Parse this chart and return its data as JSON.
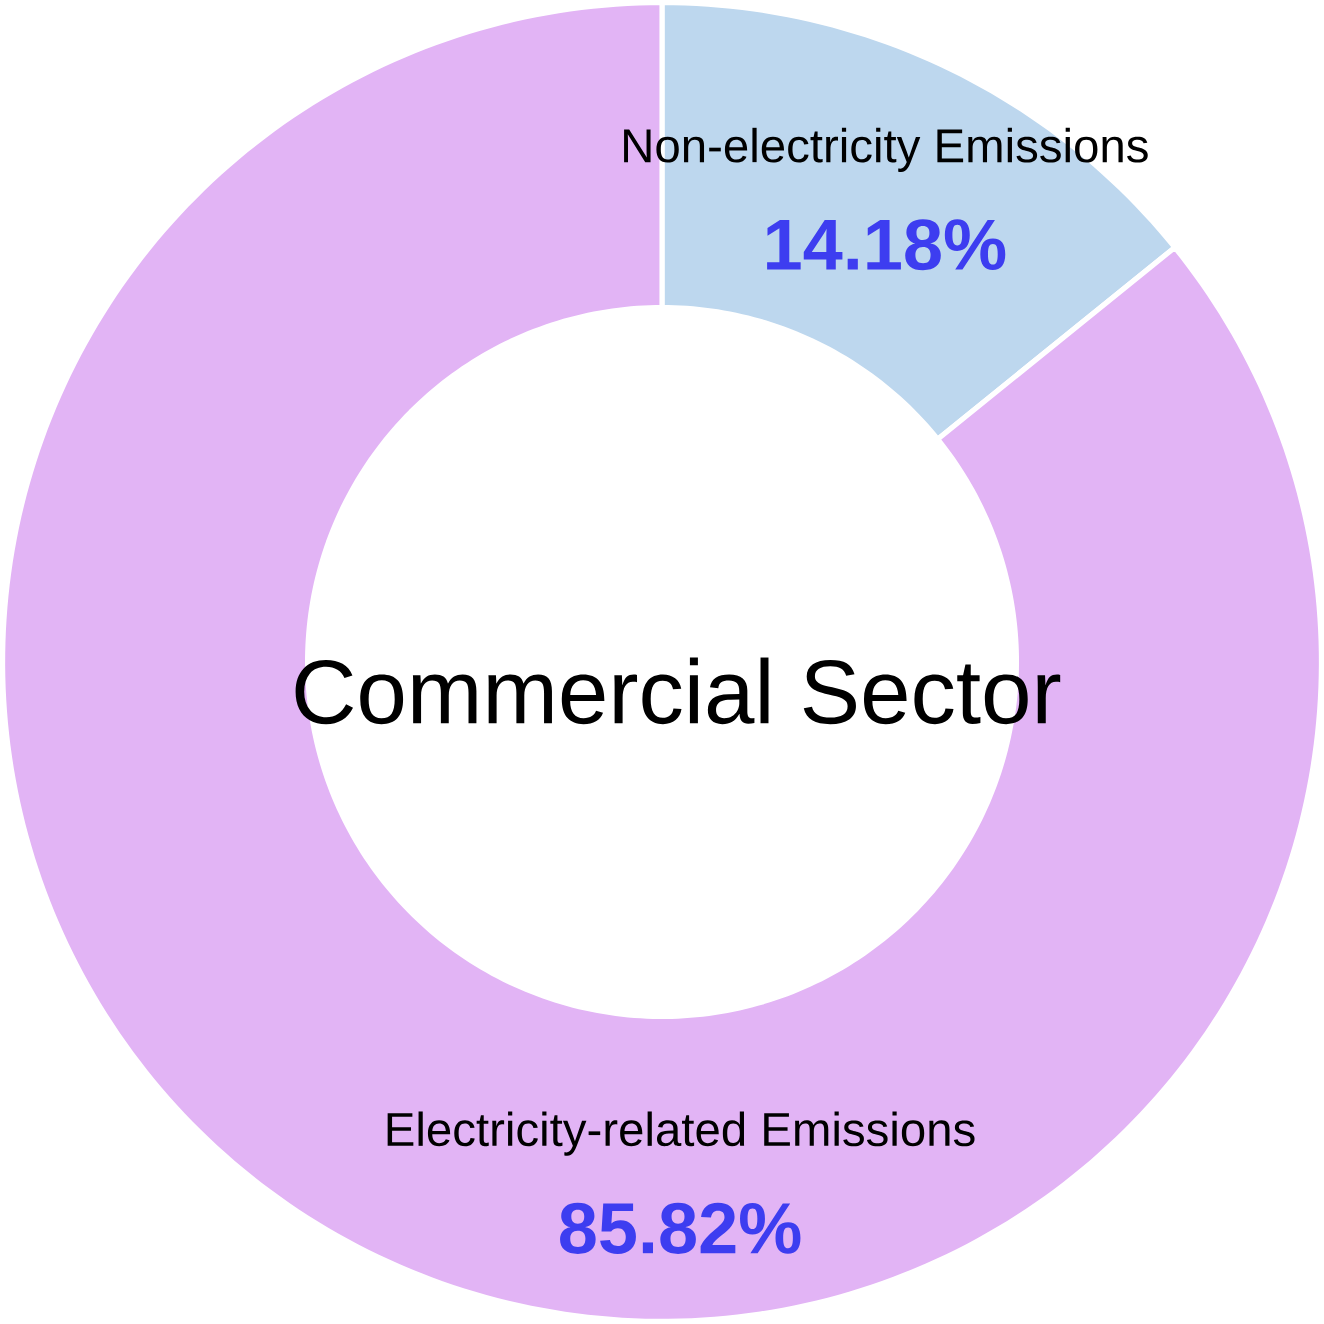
{
  "chart_data": {
    "type": "donut",
    "title": "Commercial Sector",
    "categories": [
      "Non-electricity Emissions",
      "Electricity-related Emissions"
    ],
    "values": [
      14.18,
      85.82
    ],
    "colors": [
      "#bdd7ee",
      "#e2b4f5"
    ],
    "value_labels": [
      "14.18%",
      "85.82%"
    ]
  }
}
